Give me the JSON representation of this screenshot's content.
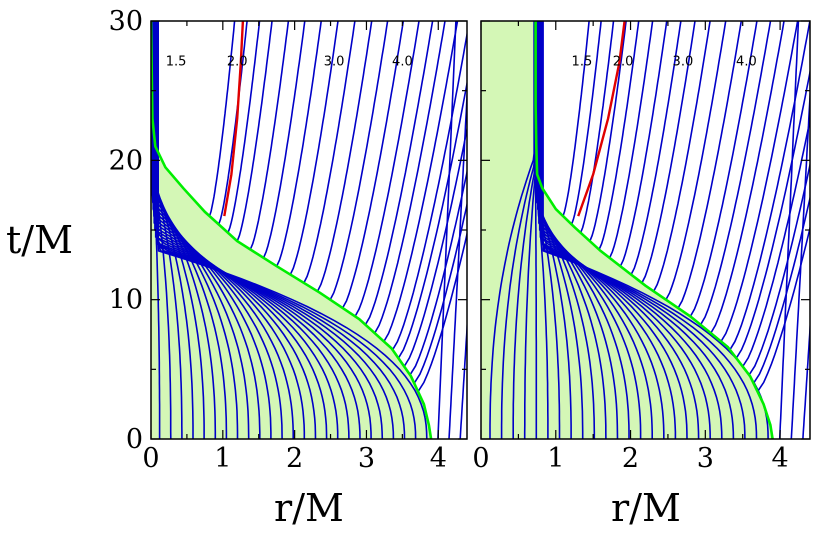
{
  "chart_data": [
    {
      "type": "line",
      "panel": "left",
      "xlabel": "r/M",
      "ylabel": "t/M",
      "xlim": [
        0,
        4.4
      ],
      "ylim": [
        0,
        30
      ],
      "xticks": [
        "0",
        "1",
        "2",
        "3",
        "4"
      ],
      "yticks": [
        "0",
        "10",
        "20",
        "30"
      ],
      "contour_labels": [
        {
          "text": "1.5",
          "x": 0.35,
          "y": 26.8
        },
        {
          "text": "2.0",
          "x": 1.2,
          "y": 26.8
        },
        {
          "text": "3.0",
          "x": 2.55,
          "y": 26.8
        },
        {
          "text": "4.0",
          "x": 3.5,
          "y": 26.8
        }
      ],
      "horizon": [
        {
          "x": 3.9,
          "y": 0
        },
        {
          "x": 3.87,
          "y": 1
        },
        {
          "x": 3.8,
          "y": 2.5
        },
        {
          "x": 3.62,
          "y": 4.5
        },
        {
          "x": 3.35,
          "y": 6.5
        },
        {
          "x": 2.9,
          "y": 8.6
        },
        {
          "x": 2.35,
          "y": 10.5
        },
        {
          "x": 1.75,
          "y": 12.4
        },
        {
          "x": 1.2,
          "y": 14.2
        },
        {
          "x": 0.75,
          "y": 16.3
        },
        {
          "x": 0.45,
          "y": 18.0
        },
        {
          "x": 0.2,
          "y": 19.5
        },
        {
          "x": 0.06,
          "y": 21.0
        },
        {
          "x": 0.02,
          "y": 23.0
        },
        {
          "x": 0.0,
          "y": 30.0
        }
      ],
      "r2_line": [
        {
          "x": 1.02,
          "y": 16.0
        },
        {
          "x": 1.12,
          "y": 19.0
        },
        {
          "x": 1.2,
          "y": 23.0
        },
        {
          "x": 1.25,
          "y": 27.0
        },
        {
          "x": 1.28,
          "y": 30.0
        }
      ],
      "worldlines": {
        "count": 28,
        "r_start": 0.12,
        "r_step": 0.155,
        "r_inner": 0.02
      },
      "colors": {
        "worldline": "#0000c8",
        "horizon": "#00ee00",
        "fill": "#d4f7b6",
        "r2_line": "#e00000"
      }
    },
    {
      "type": "line",
      "panel": "right",
      "xlabel": "r/M",
      "ylabel": "",
      "xlim": [
        0,
        4.4
      ],
      "ylim": [
        0,
        30
      ],
      "xticks": [
        "0",
        "1",
        "2",
        "3",
        "4"
      ],
      "yticks": [],
      "contour_labels": [
        {
          "text": "1.5",
          "x": 1.35,
          "y": 26.8
        },
        {
          "text": "2.0",
          "x": 1.9,
          "y": 26.8
        },
        {
          "text": "3.0",
          "x": 2.7,
          "y": 26.8
        },
        {
          "text": "4.0",
          "x": 3.55,
          "y": 26.8
        }
      ],
      "horizon": [
        {
          "x": 3.9,
          "y": 0
        },
        {
          "x": 3.87,
          "y": 1
        },
        {
          "x": 3.78,
          "y": 2.5
        },
        {
          "x": 3.6,
          "y": 4.5
        },
        {
          "x": 3.3,
          "y": 6.6
        },
        {
          "x": 2.8,
          "y": 8.8
        },
        {
          "x": 2.2,
          "y": 11.0
        },
        {
          "x": 1.6,
          "y": 13.5
        },
        {
          "x": 1.25,
          "y": 15.2
        },
        {
          "x": 1.0,
          "y": 16.5
        },
        {
          "x": 0.82,
          "y": 18.0
        },
        {
          "x": 0.75,
          "y": 19.0
        },
        {
          "x": 0.74,
          "y": 21.0
        },
        {
          "x": 0.73,
          "y": 24.0
        },
        {
          "x": 0.73,
          "y": 30.0
        }
      ],
      "r2_line": [
        {
          "x": 1.3,
          "y": 16.0
        },
        {
          "x": 1.5,
          "y": 19.0
        },
        {
          "x": 1.7,
          "y": 23.0
        },
        {
          "x": 1.85,
          "y": 27.0
        },
        {
          "x": 1.92,
          "y": 30.0
        }
      ],
      "worldlines": {
        "count": 28,
        "r_start": 0.12,
        "r_step": 0.155,
        "r_inner": 0.12
      },
      "colors": {
        "worldline": "#0000c8",
        "horizon": "#00ee00",
        "fill": "#d4f7b6",
        "r2_line": "#e00000"
      }
    }
  ]
}
